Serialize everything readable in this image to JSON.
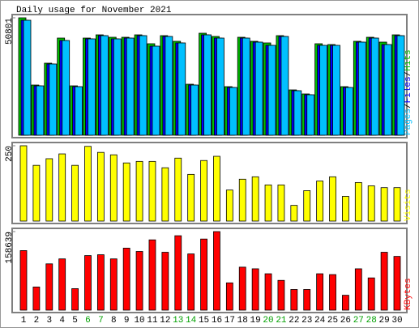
{
  "chart_data": [
    {
      "type": "bar",
      "title": "Daily usage for November 2021",
      "legend_separator": "/",
      "ylim": [
        0,
        50801
      ],
      "yticks": [
        50801
      ],
      "series": [
        {
          "name": "Hits",
          "color": "#00c000",
          "values": [
            50801,
            21720,
            31180,
            42040,
            21370,
            42040,
            43440,
            42390,
            42390,
            43440,
            39590,
            43090,
            40640,
            22070,
            44140,
            42740,
            21020,
            42390,
            40640,
            39940,
            43090,
            19620,
            17870,
            39590,
            39240,
            21020,
            40640,
            42390,
            40290,
            43440
          ]
        },
        {
          "name": "Files",
          "color": "#0000ff",
          "values": [
            49750,
            21370,
            30830,
            40990,
            21020,
            41690,
            43090,
            41690,
            42040,
            43090,
            38540,
            42740,
            39940,
            21720,
            43440,
            42040,
            20670,
            42040,
            40290,
            38890,
            42740,
            19270,
            17520,
            38890,
            38890,
            20670,
            40290,
            42040,
            39240,
            43090
          ]
        },
        {
          "name": "Pages",
          "color": "#00c0ff",
          "values": [
            49750,
            21370,
            30830,
            40990,
            21020,
            41690,
            43090,
            41690,
            42040,
            43090,
            38540,
            42740,
            39940,
            21720,
            43440,
            42040,
            20670,
            42040,
            40290,
            38890,
            42740,
            19270,
            17520,
            38890,
            38890,
            20670,
            40290,
            42040,
            39240,
            43090
          ]
        }
      ]
    },
    {
      "type": "bar",
      "ylim": [
        0,
        250
      ],
      "yticks": [
        250
      ],
      "series": [
        {
          "name": "Visits",
          "color": "#ffff00",
          "values": [
            250,
            185,
            207,
            223,
            185,
            248,
            228,
            220,
            193,
            198,
            198,
            177,
            209,
            155,
            201,
            215,
            103,
            139,
            147,
            120,
            120,
            52,
            101,
            133,
            147,
            82,
            128,
            117,
            111,
            111
          ]
        }
      ]
    },
    {
      "type": "bar",
      "ylim": [
        0,
        158639
      ],
      "yticks": [
        158639
      ],
      "categories": [
        "1",
        "2",
        "3",
        "4",
        "5",
        "6",
        "7",
        "8",
        "9",
        "10",
        "11",
        "12",
        "13",
        "14",
        "15",
        "16",
        "17",
        "18",
        "19",
        "20",
        "21",
        "22",
        "23",
        "24",
        "25",
        "26",
        "27",
        "28",
        "29",
        "30"
      ],
      "category_colors": [
        "#000000",
        "#000000",
        "#000000",
        "#000000",
        "#000000",
        "#00a000",
        "#00a000",
        "#000000",
        "#000000",
        "#000000",
        "#000000",
        "#000000",
        "#00a000",
        "#00a000",
        "#000000",
        "#000000",
        "#000000",
        "#000000",
        "#000000",
        "#00a000",
        "#00a000",
        "#000000",
        "#000000",
        "#000000",
        "#000000",
        "#000000",
        "#00a000",
        "#00a000",
        "#000000",
        "#000000"
      ],
      "series": [
        {
          "name": "KBytes",
          "color": "#ff0000",
          "values": [
            120240,
            46760,
            93520,
            103540,
            43420,
            110220,
            111890,
            103540,
            125250,
            118570,
            141950,
            116900,
            150300,
            113560,
            143620,
            158639,
            55110,
            86840,
            83500,
            73480,
            60120,
            41750,
            41750,
            73480,
            71810,
            30060,
            83500,
            65130,
            116900,
            108550
          ]
        }
      ]
    }
  ]
}
